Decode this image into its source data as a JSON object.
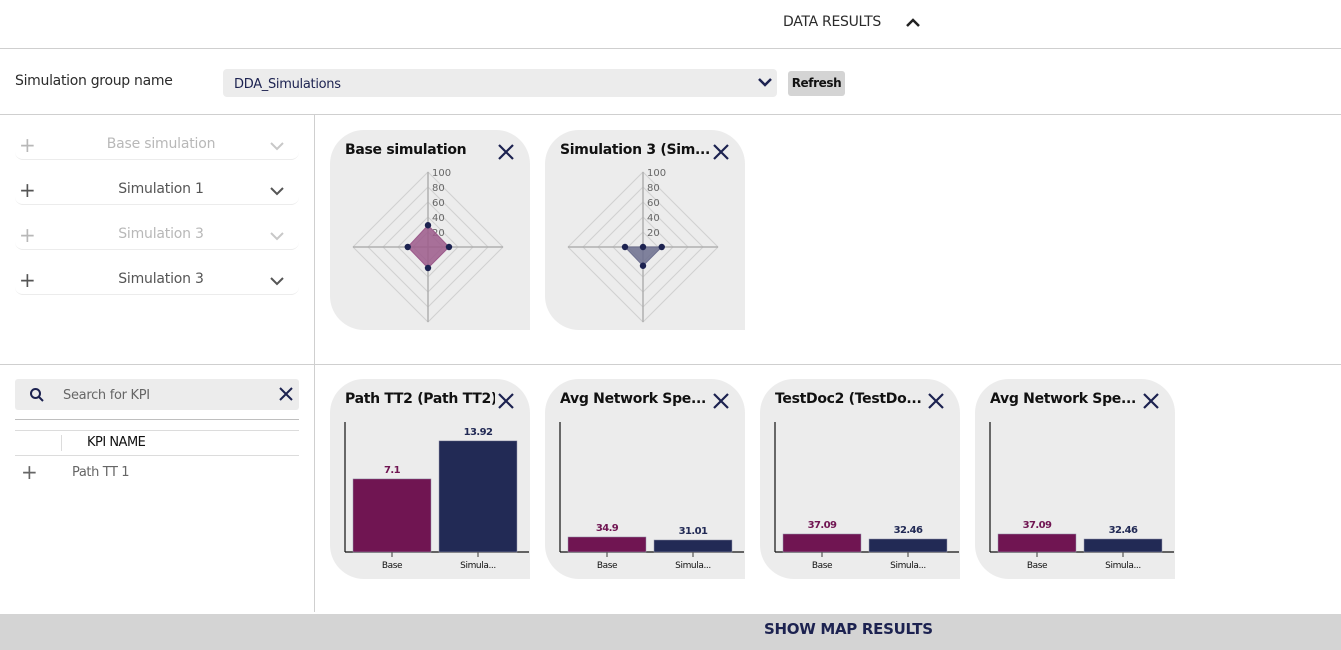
{
  "header": {
    "title": "DATA RESULTS",
    "toggle_icon": "chevron-up-icon"
  },
  "group": {
    "label": "Simulation group name",
    "selected": "DDA_Simulations",
    "refresh_label": "Refresh"
  },
  "simulations": [
    {
      "label": "Base simulation",
      "enabled": false
    },
    {
      "label": "Simulation 1",
      "enabled": true
    },
    {
      "label": "Simulation 3",
      "enabled": false
    },
    {
      "label": "Simulation 3",
      "enabled": true
    }
  ],
  "kpi": {
    "search_placeholder": "Search for KPI",
    "column_header": "KPI NAME",
    "rows": [
      {
        "label": "Path TT 1"
      }
    ]
  },
  "colors": {
    "base": "#701552",
    "sim": "#222a55",
    "radar_point": "#1c2250",
    "base_fill": "#9c5a8b",
    "sim_fill": "#6c6f8e"
  },
  "chart_data": [
    {
      "type": "radar",
      "title": "Base simulation",
      "ticks": [
        "20",
        "40",
        "60",
        "80",
        "100"
      ],
      "rlim": [
        0,
        100
      ],
      "axes": [
        "top",
        "right",
        "bottom",
        "left"
      ],
      "values": [
        29,
        28,
        28,
        27
      ],
      "color": "base"
    },
    {
      "type": "radar",
      "title": "Simulation 3 (Sim...",
      "ticks": [
        "20",
        "40",
        "60",
        "80",
        "100"
      ],
      "rlim": [
        0,
        100
      ],
      "axes": [
        "top",
        "right",
        "bottom",
        "left"
      ],
      "values": [
        0,
        25,
        25,
        24
      ],
      "color": "sim"
    },
    {
      "type": "bar",
      "title": "Path TT2 (Path TT2)",
      "categories": [
        "Base",
        "Simula..."
      ],
      "values": [
        7.1,
        13.92
      ],
      "labels": [
        "7.1",
        "13.92"
      ],
      "ylim": [
        -6,
        17.3
      ]
    },
    {
      "type": "bar",
      "title": "Avg Network Spe...",
      "categories": [
        "Base",
        "Simula..."
      ],
      "values": [
        34.9,
        31.01
      ],
      "labels": [
        "34.9",
        "31.01"
      ],
      "ylim": [
        15.4,
        184
      ]
    },
    {
      "type": "bar",
      "title": "TestDoc2 (TestDo...",
      "categories": [
        "Base",
        "Simula..."
      ],
      "values": [
        37.09,
        32.46
      ],
      "labels": [
        "37.09",
        "32.46"
      ],
      "ylim": [
        20.4,
        140.8
      ]
    },
    {
      "type": "bar",
      "title": "Avg Network Spe...",
      "categories": [
        "Base",
        "Simula..."
      ],
      "values": [
        37.09,
        32.46
      ],
      "labels": [
        "37.09",
        "32.46"
      ],
      "ylim": [
        20.4,
        140.8
      ]
    }
  ],
  "footer": {
    "label": "SHOW MAP RESULTS"
  }
}
